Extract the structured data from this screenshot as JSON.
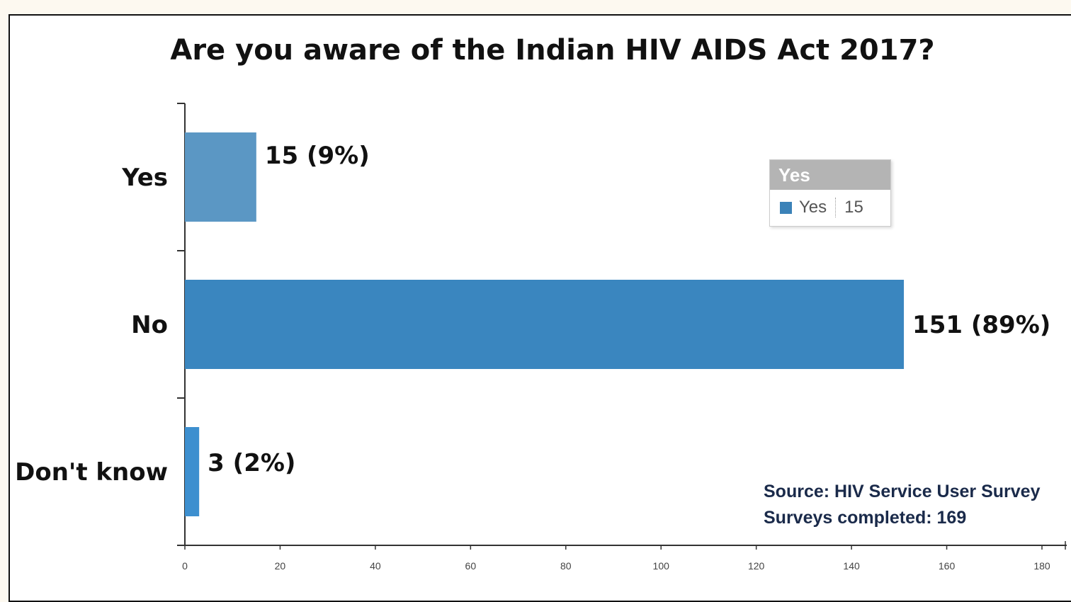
{
  "colors": {
    "bar_yes": "#5b97c4",
    "bar_no": "#3a86bf",
    "bar_dontknow": "#3d8fcf",
    "tooltip_swatch": "#3b82b8"
  },
  "tooltip": {
    "header": "Yes",
    "series_name": "Yes",
    "value": "15"
  },
  "source": {
    "line1": "Source: HIV Service User Survey",
    "line2": "Surveys completed: 169"
  },
  "chart_data": {
    "type": "bar",
    "orientation": "horizontal",
    "title": "Are you aware of the Indian HIV AIDS Act 2017?",
    "categories": [
      "Yes",
      "No",
      "Don't know"
    ],
    "values": [
      15,
      151,
      3
    ],
    "data_labels": [
      "15 (9%)",
      "151 (89%)",
      "3 (2%)"
    ],
    "xlabel": "",
    "ylabel": "",
    "xlim": [
      0,
      180
    ],
    "x_ticks": [
      "0",
      "20",
      "40",
      "60",
      "80",
      "100",
      "120",
      "140",
      "160",
      "180"
    ],
    "grid": false,
    "legend": "none"
  }
}
